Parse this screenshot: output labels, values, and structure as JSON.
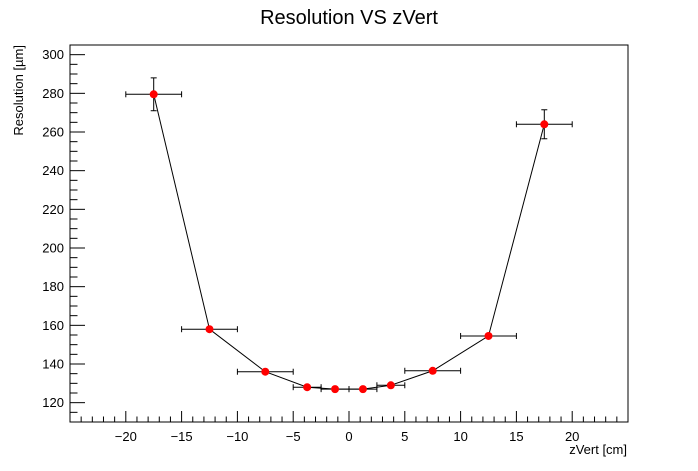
{
  "chart_data": {
    "type": "scatter",
    "title": "Resolution VS zVert",
    "xlabel": "zVert [cm]",
    "ylabel": "Resolution [µm]",
    "xlim": [
      -25,
      25
    ],
    "ylim": [
      110,
      305
    ],
    "x_ticks": [
      -20,
      -15,
      -10,
      -5,
      0,
      5,
      10,
      15,
      20
    ],
    "x_tick_labels": [
      "−20",
      "−15",
      "−10",
      "−5",
      "0",
      "5",
      "10",
      "15",
      "20"
    ],
    "y_ticks": [
      120,
      140,
      160,
      180,
      200,
      220,
      240,
      260,
      280,
      300
    ],
    "y_tick_labels": [
      "120",
      "140",
      "160",
      "180",
      "200",
      "220",
      "240",
      "260",
      "280",
      "300"
    ],
    "grid": false,
    "marker_color": "#ff0000",
    "line_color": "#000000",
    "series": [
      {
        "points": [
          {
            "x": -17.5,
            "y": 279.5,
            "xerr": 2.5,
            "yerr": 8.5
          },
          {
            "x": -12.5,
            "y": 158,
            "xerr": 2.5,
            "yerr": 1.0
          },
          {
            "x": -7.5,
            "y": 136,
            "xerr": 2.5,
            "yerr": 1.0
          },
          {
            "x": -3.75,
            "y": 128,
            "xerr": 1.25,
            "yerr": 0.8
          },
          {
            "x": -1.25,
            "y": 127,
            "xerr": 1.25,
            "yerr": 0.8
          },
          {
            "x": 1.25,
            "y": 127,
            "xerr": 1.25,
            "yerr": 0.8
          },
          {
            "x": 3.75,
            "y": 129,
            "xerr": 1.25,
            "yerr": 0.8
          },
          {
            "x": 7.5,
            "y": 136.5,
            "xerr": 2.5,
            "yerr": 1.0
          },
          {
            "x": 12.5,
            "y": 154.5,
            "xerr": 2.5,
            "yerr": 1.0
          },
          {
            "x": 17.5,
            "y": 264,
            "xerr": 2.5,
            "yerr": 7.5
          }
        ]
      }
    ]
  }
}
